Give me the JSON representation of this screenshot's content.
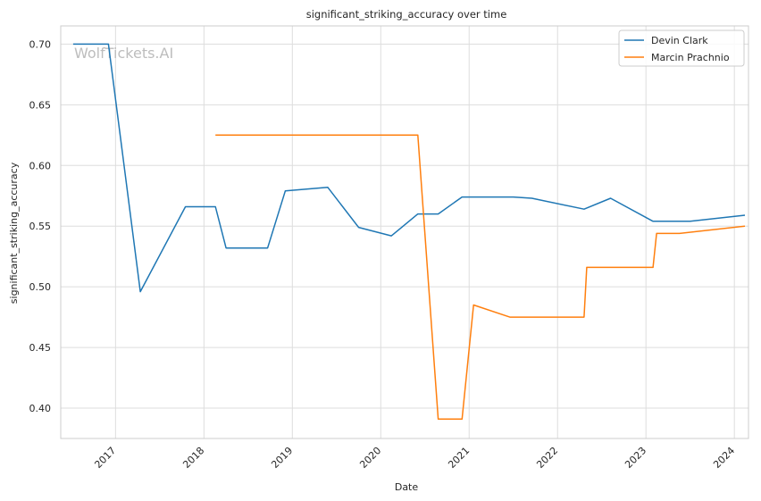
{
  "chart_data": {
    "type": "line",
    "title": "significant_striking_accuracy over time",
    "xlabel": "Date",
    "ylabel": "significant_striking_accuracy",
    "watermark": "WolfTickets.AI",
    "xlim": [
      2016.38,
      2024.16
    ],
    "ylim": [
      0.375,
      0.715
    ],
    "x_ticks": [
      2017,
      2018,
      2019,
      2020,
      2021,
      2022,
      2023,
      2024
    ],
    "y_ticks": [
      "0.40",
      "0.45",
      "0.50",
      "0.55",
      "0.60",
      "0.65",
      "0.70"
    ],
    "grid": true,
    "legend_position": "top-right",
    "series": [
      {
        "name": "Devin Clark",
        "color": "#1f77b4",
        "points": [
          [
            2016.52,
            0.7
          ],
          [
            2016.92,
            0.7
          ],
          [
            2017.28,
            0.496
          ],
          [
            2017.79,
            0.566
          ],
          [
            2018.13,
            0.566
          ],
          [
            2018.25,
            0.532
          ],
          [
            2018.72,
            0.532
          ],
          [
            2018.92,
            0.579
          ],
          [
            2019.4,
            0.582
          ],
          [
            2019.75,
            0.549
          ],
          [
            2020.12,
            0.542
          ],
          [
            2020.42,
            0.56
          ],
          [
            2020.65,
            0.56
          ],
          [
            2020.92,
            0.574
          ],
          [
            2021.5,
            0.574
          ],
          [
            2021.71,
            0.573
          ],
          [
            2022.3,
            0.564
          ],
          [
            2022.6,
            0.573
          ],
          [
            2023.08,
            0.554
          ],
          [
            2023.5,
            0.554
          ],
          [
            2024.12,
            0.559
          ]
        ]
      },
      {
        "name": "Marcin Prachnio",
        "color": "#ff7f0e",
        "points": [
          [
            2018.13,
            0.625
          ],
          [
            2020.42,
            0.625
          ],
          [
            2020.65,
            0.391
          ],
          [
            2020.92,
            0.391
          ],
          [
            2021.05,
            0.485
          ],
          [
            2021.46,
            0.475
          ],
          [
            2022.3,
            0.475
          ],
          [
            2022.33,
            0.516
          ],
          [
            2023.08,
            0.516
          ],
          [
            2023.12,
            0.544
          ],
          [
            2023.38,
            0.544
          ],
          [
            2024.12,
            0.55
          ]
        ]
      }
    ]
  }
}
